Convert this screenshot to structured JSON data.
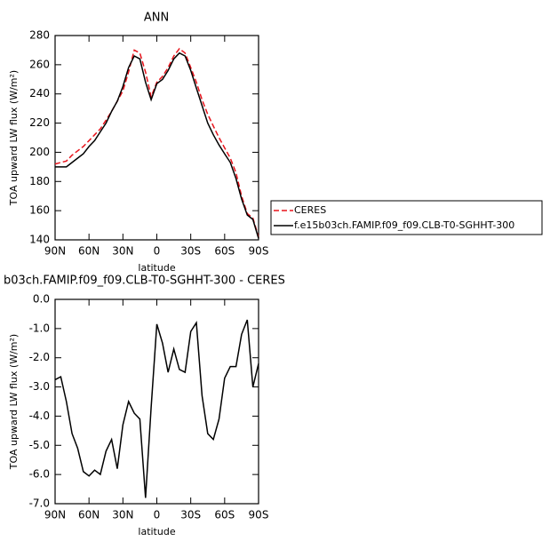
{
  "chart_data": [
    {
      "type": "line",
      "title": "ANN",
      "x_label": "latitude",
      "y_label": "TOA upward LW flux (W/m²)",
      "x": [
        90,
        85,
        80,
        75,
        70,
        65,
        60,
        55,
        50,
        45,
        40,
        35,
        30,
        25,
        20,
        15,
        10,
        5,
        0,
        -5,
        -10,
        -15,
        -20,
        -25,
        -30,
        -35,
        -40,
        -45,
        -50,
        -55,
        -60,
        -65,
        -70,
        -75,
        -80,
        -85,
        -90
      ],
      "series": [
        {
          "name": "CERES",
          "color": "#e8141c",
          "line_style": "dashed",
          "values": [
            192,
            193,
            194,
            198,
            201,
            204,
            208,
            212,
            216,
            222,
            228,
            235,
            242,
            255,
            270,
            268,
            255,
            238,
            248,
            252,
            258,
            266,
            271,
            268,
            258,
            248,
            236,
            226,
            218,
            210,
            203,
            196,
            186,
            170,
            158,
            155,
            142
          ]
        },
        {
          "name": "f.e15b03ch.FAMIP.f09_f09.CLB-T0-SGHHT-300",
          "color": "#000000",
          "line_style": "solid",
          "values": [
            190,
            190,
            190,
            193,
            196,
            199,
            204,
            208,
            214,
            220,
            228,
            235,
            245,
            258,
            266,
            264,
            248,
            236,
            247,
            250,
            256,
            264,
            268,
            266,
            256,
            244,
            232,
            220,
            212,
            205,
            199,
            193,
            182,
            168,
            157,
            154,
            141
          ]
        }
      ],
      "xlim": [
        90,
        -90
      ],
      "xticks": [
        {
          "value": 90,
          "label": "90N"
        },
        {
          "value": 60,
          "label": "60N"
        },
        {
          "value": 30,
          "label": "30N"
        },
        0,
        {
          "value": -30,
          "label": "30S"
        },
        {
          "value": -60,
          "label": "60S"
        },
        {
          "value": -90,
          "label": "90S"
        }
      ],
      "ylim": [
        140,
        280
      ],
      "yticks": [
        140,
        160,
        180,
        200,
        220,
        240,
        260,
        280
      ],
      "legend": "right"
    },
    {
      "type": "line",
      "title": "b03ch.FAMIP.f09_f09.CLB-T0-SGHHT-300 - CERES",
      "x_label": "latitude",
      "y_label": "TOA upward LW flux (W/m²)",
      "x": [
        90,
        85,
        80,
        75,
        70,
        65,
        60,
        55,
        50,
        45,
        40,
        35,
        30,
        25,
        20,
        15,
        10,
        5,
        0,
        -5,
        -10,
        -15,
        -20,
        -25,
        -30,
        -35,
        -40,
        -45,
        -50,
        -55,
        -60,
        -65,
        -70,
        -75,
        -80,
        -85,
        -90
      ],
      "series": [
        {
          "color": "#000000",
          "line_style": "solid",
          "values": [
            -2.75,
            -2.65,
            -3.5,
            -4.6,
            -5.1,
            -5.9,
            -6.05,
            -5.85,
            -6.0,
            -5.2,
            -4.8,
            -5.8,
            -4.3,
            -3.5,
            -3.9,
            -4.1,
            -6.8,
            -3.7,
            -0.85,
            -1.5,
            -2.5,
            -1.7,
            -2.4,
            -2.5,
            -1.1,
            -0.8,
            -3.3,
            -4.6,
            -4.8,
            -4.1,
            -2.7,
            -2.3,
            -2.3,
            -1.2,
            -0.7,
            -3.0,
            -2.2
          ]
        }
      ],
      "xlim": [
        90,
        -90
      ],
      "xticks": [
        {
          "value": 90,
          "label": "90N"
        },
        {
          "value": 60,
          "label": "60N"
        },
        {
          "value": 30,
          "label": "30N"
        },
        0,
        {
          "value": -30,
          "label": "30S"
        },
        {
          "value": -60,
          "label": "60S"
        },
        {
          "value": -90,
          "label": "90S"
        }
      ],
      "ylim": [
        -7,
        0
      ],
      "yticks": [
        {
          "value": -7,
          "label": "-7.0"
        },
        {
          "value": -6,
          "label": "-6.0"
        },
        {
          "value": -5,
          "label": "-5.0"
        },
        {
          "value": -4,
          "label": "-4.0"
        },
        {
          "value": -3,
          "label": "-3.0"
        },
        {
          "value": -2,
          "label": "-2.0"
        },
        {
          "value": -1,
          "label": "-1.0"
        },
        {
          "value": 0,
          "label": "0.0"
        }
      ]
    }
  ]
}
